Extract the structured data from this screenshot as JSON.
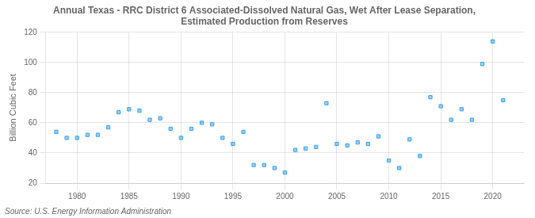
{
  "chart_data": {
    "type": "scatter",
    "title": "Annual Texas - RRC District 6 Associated-Dissolved Natural Gas, Wet After Lease Separation,\nEstimated Production from Reserves",
    "y_label": "Billion Cubic Feet",
    "annotations": [
      "Source: U.S. Energy Information Administration"
    ],
    "x": [
      1978,
      1979,
      1980,
      1981,
      1982,
      1983,
      1984,
      1985,
      1986,
      1987,
      1988,
      1989,
      1990,
      1991,
      1992,
      1993,
      1994,
      1995,
      1996,
      1997,
      1998,
      1999,
      2000,
      2001,
      2002,
      2003,
      2004,
      2005,
      2006,
      2007,
      2008,
      2009,
      2010,
      2011,
      2012,
      2013,
      2014,
      2015,
      2016,
      2017,
      2018,
      2019,
      2020,
      2021
    ],
    "values": [
      54,
      50,
      50,
      52,
      52,
      57,
      67,
      69,
      68,
      62,
      63,
      56,
      50,
      56,
      60,
      59,
      50,
      46,
      54,
      32,
      32,
      30,
      27,
      42,
      43,
      44,
      73,
      46,
      45,
      47,
      46,
      51,
      35,
      30,
      49,
      38,
      77,
      71,
      62,
      69,
      62,
      99,
      114,
      75
    ],
    "xlim": [
      1977,
      2023
    ],
    "ylim": [
      20,
      120
    ],
    "xticks": [
      1980,
      1985,
      1990,
      1995,
      2000,
      2005,
      2010,
      2015,
      2020
    ],
    "yticks": [
      20,
      40,
      60,
      80,
      100,
      120
    ],
    "marker": "square",
    "grid": true
  }
}
